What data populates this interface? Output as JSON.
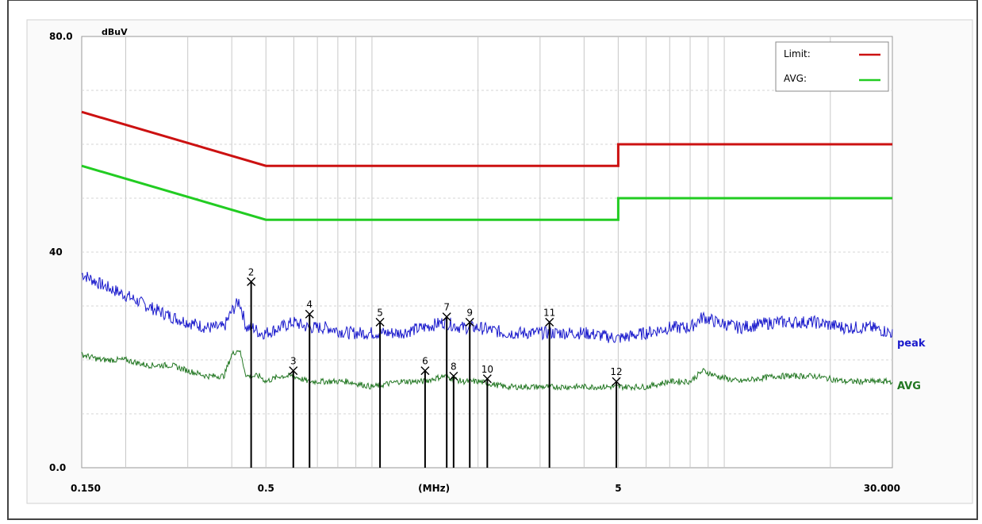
{
  "chart_data": {
    "type": "line",
    "unit_label": "dBuV",
    "xlabel": "(MHz)",
    "x_scale": "log",
    "xlim": [
      0.15,
      30.0
    ],
    "ylim": [
      0,
      80
    ],
    "grid": true,
    "y_ticks": [
      "80.0",
      "40",
      "0.0"
    ],
    "x_ticks": [
      {
        "value": 0.15,
        "label": "0.150"
      },
      {
        "value": 0.5,
        "label": "0.5"
      },
      {
        "value": 1.5,
        "label": "(MHz)"
      },
      {
        "value": 5,
        "label": "5"
      },
      {
        "value": 30,
        "label": "30.000"
      }
    ],
    "legend": {
      "placement": "top-right",
      "items": [
        {
          "name": "Limit:",
          "color": "#cc1111"
        },
        {
          "name": "AVG:",
          "color": "#22cc22"
        }
      ]
    },
    "limits": [
      {
        "name": "Limit:",
        "color": "#cc1111",
        "points": [
          [
            0.15,
            66
          ],
          [
            0.5,
            56
          ],
          [
            5,
            56
          ],
          [
            5,
            60
          ],
          [
            30,
            60
          ]
        ]
      },
      {
        "name": "AVG:",
        "color": "#22cc22",
        "points": [
          [
            0.15,
            56
          ],
          [
            0.5,
            46
          ],
          [
            5,
            46
          ],
          [
            5,
            50
          ],
          [
            30,
            50
          ]
        ]
      }
    ],
    "series": [
      {
        "name": "peak",
        "color": "#1a1acc",
        "x": [
          0.15,
          0.17,
          0.2,
          0.23,
          0.27,
          0.3,
          0.34,
          0.38,
          0.4,
          0.42,
          0.44,
          0.46,
          0.48,
          0.5,
          0.55,
          0.6,
          0.66,
          0.75,
          0.85,
          1.0,
          1.2,
          1.4,
          1.6,
          1.8,
          2.0,
          2.4,
          2.8,
          3.4,
          4.0,
          5.0,
          6.0,
          7.0,
          8.0,
          8.7,
          9.5,
          11,
          14,
          18,
          22,
          26,
          30
        ],
        "y": [
          36,
          34,
          32,
          30,
          28,
          27,
          26,
          26,
          29,
          31,
          26,
          26,
          25,
          25,
          26,
          27,
          26,
          26,
          25,
          25,
          25,
          26,
          27,
          26,
          26,
          25,
          25,
          25,
          25,
          24,
          25,
          26,
          26,
          28,
          27,
          26,
          27,
          27,
          26,
          26,
          25
        ]
      },
      {
        "name": "AVG",
        "color": "#227722",
        "x": [
          0.15,
          0.17,
          0.2,
          0.23,
          0.27,
          0.3,
          0.34,
          0.38,
          0.4,
          0.42,
          0.44,
          0.46,
          0.48,
          0.5,
          0.55,
          0.6,
          0.66,
          0.75,
          0.85,
          1.0,
          1.2,
          1.4,
          1.6,
          1.8,
          2.0,
          2.4,
          2.8,
          3.4,
          4.0,
          5.0,
          6.0,
          7.0,
          8.0,
          8.7,
          9.5,
          11,
          14,
          18,
          22,
          26,
          30
        ],
        "y": [
          21,
          20,
          20,
          19,
          19,
          18,
          17,
          17,
          21,
          22,
          17,
          17,
          17,
          16,
          17,
          17,
          16,
          16,
          16,
          15,
          16,
          16,
          17,
          16,
          16,
          15,
          15,
          15,
          15,
          15,
          15,
          16,
          16,
          18,
          17,
          16,
          17,
          17,
          16,
          16,
          16
        ]
      }
    ],
    "markers": [
      {
        "label": "2",
        "freq": 0.454,
        "value": 34.5,
        "peak_value": 34.5,
        "avg_value": 22,
        "bar_top": 34.5
      },
      {
        "label": "3",
        "freq": 0.598,
        "value": 18.0
      },
      {
        "label": "4",
        "freq": 0.665,
        "value": 28.5
      },
      {
        "label": "5",
        "freq": 1.054,
        "value": 27.0
      },
      {
        "label": "6",
        "freq": 1.415,
        "value": 18.0
      },
      {
        "label": "7",
        "freq": 1.63,
        "value": 28.0
      },
      {
        "label": "8",
        "freq": 1.705,
        "value": 17.0
      },
      {
        "label": "9",
        "freq": 1.895,
        "value": 27.0
      },
      {
        "label": "10",
        "freq": 2.125,
        "value": 16.5
      },
      {
        "label": "11",
        "freq": 3.19,
        "value": 27.0
      },
      {
        "label": "12",
        "freq": 4.94,
        "value": 16.0
      }
    ]
  }
}
